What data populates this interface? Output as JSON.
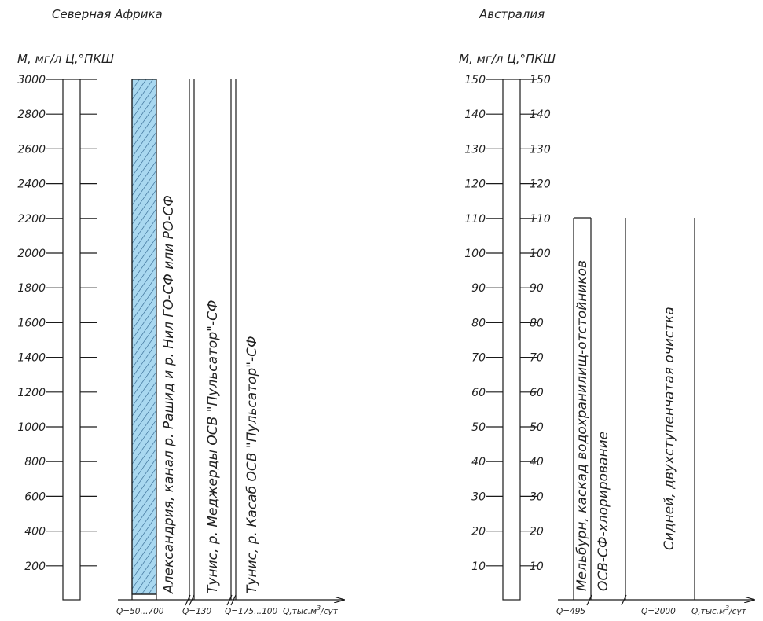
{
  "north_africa": {
    "title": "Северная Африка",
    "axis_label": "М, мг/л Ц,°ПКШ",
    "ticks": [
      "200",
      "400",
      "600",
      "800",
      "1000",
      "1200",
      "1400",
      "1600",
      "1800",
      "2000",
      "2200",
      "2400",
      "2600",
      "2800",
      "3000"
    ],
    "columns": [
      {
        "text": "Александрия, канал р. Рашид и р. Нил ГО-СФ или РО-СФ",
        "range_top": 3000,
        "range_bottom": 0,
        "hatched": true
      },
      {
        "text": "Тунис, р. Меджерды ОСВ \"Пульсатор\"-СФ",
        "range_top": 3000
      },
      {
        "text": "Тунис, р. Касаб ОСВ \"Пульсатор\"-СФ",
        "range_top": 3000
      }
    ],
    "q_labels": [
      "Q=50...700",
      "Q=130",
      "Q=175...100",
      "Q,тыс.м",
      "3",
      "/сут"
    ]
  },
  "australia": {
    "title": "Австралия",
    "axis_label": "М, мг/л Ц,°ПКШ",
    "ticks": [
      "10",
      "20",
      "30",
      "40",
      "50",
      "60",
      "70",
      "80",
      "90",
      "100",
      "110",
      "120",
      "130",
      "140",
      "150"
    ],
    "columns": [
      {
        "text": "Мельбурн, каскад водохранилищ-отстойников",
        "range_top": 110
      },
      {
        "text": "ОСВ-СФ-хлорирование",
        "range_top": 110
      },
      {
        "text": "Сидней, двухступенчатая очистка",
        "range_top": 110
      }
    ],
    "q_labels": [
      "Q=495",
      "Q=2000",
      "Q,тыс.м",
      "3",
      "/сут"
    ]
  },
  "colors": {
    "hatch_fill": "#a9d8f0",
    "hatch_line": "#2a5f8a",
    "line": "#1a1a1a"
  }
}
